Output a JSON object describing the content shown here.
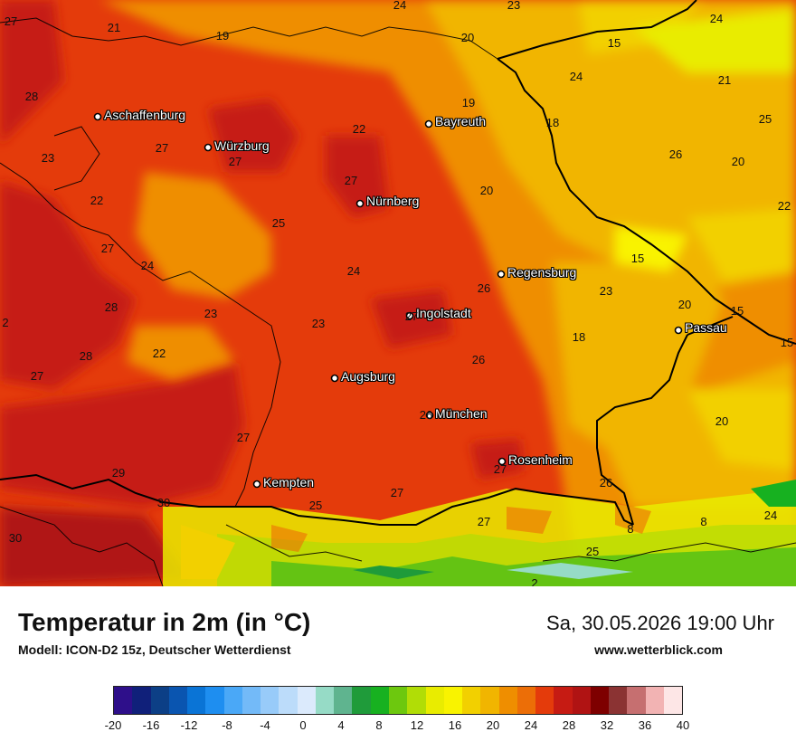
{
  "header": {
    "title": "Temperatur in 2m (in °C)",
    "model": "Modell: ICON-D2 15z, Deutscher Wetterdienst",
    "datetime": "Sa, 30.05.2026 19:00 Uhr",
    "website": "www.wetterblick.com"
  },
  "cities": [
    {
      "name": "Aschaffenburg"
    },
    {
      "name": "Würzburg"
    },
    {
      "name": "Bayreuth"
    },
    {
      "name": "Nürnberg"
    },
    {
      "name": "Regensburg"
    },
    {
      "name": "Ingolstadt"
    },
    {
      "name": "Passau"
    },
    {
      "name": "Augsburg"
    },
    {
      "name": "München"
    },
    {
      "name": "Rosenheim"
    },
    {
      "name": "Kempten"
    }
  ],
  "values": [
    "27",
    "21",
    "19",
    "24",
    "23",
    "20",
    "24",
    "15",
    "24",
    "21",
    "28",
    "25",
    "23",
    "27",
    "27",
    "22",
    "19",
    "18",
    "26",
    "20",
    "22",
    "22",
    "27",
    "20",
    "25",
    "24",
    "27",
    "24",
    "15",
    "23",
    "26",
    "23",
    "20",
    "2",
    "28",
    "27",
    "23",
    "26",
    "15",
    "15",
    "22",
    "28",
    "18",
    "27",
    "26",
    "20",
    "27",
    "29",
    "30",
    "25",
    "27",
    "27",
    "24",
    "27",
    "26",
    "8",
    "8",
    "25",
    "30",
    "2"
  ],
  "legend": {
    "ticks": [
      "-20",
      "-16",
      "-12",
      "-8",
      "-4",
      "0",
      "4",
      "8",
      "12",
      "16",
      "20",
      "24",
      "28",
      "32",
      "36",
      "40"
    ],
    "colors": [
      "#2e0f8a",
      "#10207a",
      "#0c3f86",
      "#0a55b0",
      "#0a74d6",
      "#1e8ef0",
      "#4aa8f7",
      "#73baf8",
      "#98cbf9",
      "#bcdcfa",
      "#dbeafc",
      "#96dbc6",
      "#5fb48f",
      "#1f9b3a",
      "#17b120",
      "#6dc80e",
      "#b1dd06",
      "#e9ec00",
      "#f9f300",
      "#f2d000",
      "#f1b500",
      "#ef8e00",
      "#ec6e07",
      "#e43b0b",
      "#c61b13",
      "#b01313",
      "#7e0000",
      "#8b3333",
      "#c66f70",
      "#f2b3b3",
      "#fde6e6"
    ]
  }
}
